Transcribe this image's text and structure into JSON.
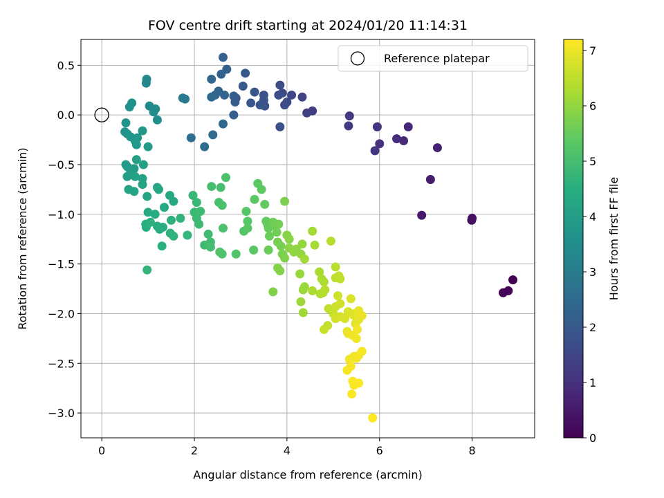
{
  "chart_data": {
    "type": "scatter",
    "title": "FOV centre drift starting at 2024/01/20 11:14:31",
    "xlabel": "Angular distance from reference (arcmin)",
    "ylabel": "Rotation from reference (arcmin)",
    "xlim": [
      -0.45,
      9.35
    ],
    "ylim": [
      -3.25,
      0.76
    ],
    "xticks": [
      0,
      2,
      4,
      6,
      8
    ],
    "xtick_labels": [
      "0",
      "2",
      "4",
      "6",
      "8"
    ],
    "yticks": [
      0.5,
      0.0,
      -0.5,
      -1.0,
      -1.5,
      -2.0,
      -2.5,
      -3.0
    ],
    "ytick_labels": [
      "0.5",
      "0.0",
      "−0.5",
      "−1.0",
      "−1.5",
      "−2.0",
      "−2.5",
      "−3.0"
    ],
    "grid": true,
    "legend": {
      "position": "top-right",
      "label": "Reference platepar"
    },
    "reference_point": {
      "x": 0,
      "y": 0
    },
    "colorbar": {
      "label": "Hours from first FF file",
      "colormap": "viridis",
      "range": [
        0,
        7.2
      ],
      "ticks": [
        0,
        1,
        2,
        3,
        4,
        5,
        6,
        7
      ],
      "tick_labels": [
        "0",
        "1",
        "2",
        "3",
        "4",
        "5",
        "6",
        "7"
      ]
    },
    "points": [
      [
        8.88,
        -1.66,
        0.02
      ],
      [
        8.78,
        -1.77,
        0.05
      ],
      [
        8.67,
        -1.79,
        0.08
      ],
      [
        8.0,
        -1.04,
        0.3
      ],
      [
        7.99,
        -1.06,
        0.35
      ],
      [
        6.91,
        -1.01,
        0.5
      ],
      [
        7.1,
        -0.65,
        0.6
      ],
      [
        7.25,
        -0.33,
        0.7
      ],
      [
        6.62,
        -0.12,
        0.8
      ],
      [
        6.52,
        -0.26,
        0.85
      ],
      [
        6.37,
        -0.24,
        0.9
      ],
      [
        6.0,
        -0.29,
        1.0
      ],
      [
        5.95,
        -0.12,
        1.05
      ],
      [
        5.9,
        -0.36,
        1.1
      ],
      [
        5.35,
        -0.01,
        1.2
      ],
      [
        5.33,
        -0.11,
        1.25
      ],
      [
        4.55,
        0.04,
        1.3
      ],
      [
        4.43,
        0.02,
        1.35
      ],
      [
        4.33,
        0.18,
        1.45
      ],
      [
        4.1,
        0.2,
        1.55
      ],
      [
        3.9,
        0.22,
        1.6
      ],
      [
        4.0,
        0.13,
        1.62
      ],
      [
        3.95,
        0.1,
        1.65
      ],
      [
        3.85,
        0.3,
        1.68
      ],
      [
        3.82,
        0.2,
        1.7
      ],
      [
        3.85,
        -0.12,
        1.75
      ],
      [
        3.5,
        0.2,
        1.8
      ],
      [
        3.5,
        0.15,
        1.82
      ],
      [
        3.52,
        0.09,
        1.85
      ],
      [
        3.42,
        0.1,
        1.88
      ],
      [
        3.3,
        0.23,
        1.9
      ],
      [
        3.22,
        0.12,
        1.95
      ],
      [
        3.1,
        0.42,
        2.0
      ],
      [
        3.05,
        0.29,
        2.02
      ],
      [
        2.9,
        0.17,
        2.05
      ],
      [
        2.85,
        0.19,
        2.1
      ],
      [
        2.88,
        0.13,
        2.12
      ],
      [
        2.85,
        0.0,
        2.15
      ],
      [
        2.7,
        0.46,
        2.2
      ],
      [
        2.62,
        0.58,
        2.25
      ],
      [
        2.58,
        0.41,
        2.28
      ],
      [
        2.65,
        0.2,
        2.3
      ],
      [
        2.52,
        0.24,
        2.32
      ],
      [
        2.45,
        0.2,
        2.35
      ],
      [
        2.37,
        0.36,
        2.4
      ],
      [
        2.37,
        0.18,
        2.42
      ],
      [
        2.62,
        -0.09,
        2.45
      ],
      [
        2.4,
        -0.2,
        2.5
      ],
      [
        2.22,
        -0.32,
        2.55
      ],
      [
        1.93,
        -0.23,
        2.6
      ],
      [
        1.8,
        0.16,
        2.9
      ],
      [
        1.75,
        0.17,
        2.92
      ],
      [
        0.97,
        0.36,
        3.3
      ],
      [
        0.96,
        0.32,
        3.35
      ],
      [
        1.03,
        0.09,
        3.4
      ],
      [
        1.16,
        0.06,
        3.45
      ],
      [
        1.12,
        0.03,
        3.5
      ],
      [
        1.2,
        -0.05,
        3.55
      ],
      [
        0.65,
        0.12,
        3.6
      ],
      [
        0.6,
        0.08,
        3.62
      ],
      [
        0.52,
        -0.08,
        3.65
      ],
      [
        0.5,
        -0.17,
        3.7
      ],
      [
        0.55,
        -0.19,
        3.72
      ],
      [
        0.62,
        -0.22,
        3.75
      ],
      [
        0.72,
        -0.26,
        3.78
      ],
      [
        0.77,
        -0.23,
        3.8
      ],
      [
        0.88,
        -0.16,
        3.82
      ],
      [
        0.75,
        -0.3,
        3.85
      ],
      [
        1.0,
        -0.32,
        3.87
      ],
      [
        0.52,
        -0.5,
        3.9
      ],
      [
        0.55,
        -0.52,
        3.92
      ],
      [
        0.7,
        -0.54,
        3.95
      ],
      [
        0.62,
        -0.58,
        3.97
      ],
      [
        0.55,
        -0.62,
        4.0
      ],
      [
        0.62,
        -0.6,
        4.02
      ],
      [
        0.75,
        -0.45,
        4.05
      ],
      [
        0.9,
        -0.5,
        4.07
      ],
      [
        0.72,
        -0.62,
        4.1
      ],
      [
        0.88,
        -0.64,
        4.12
      ],
      [
        0.7,
        -0.77,
        4.15
      ],
      [
        0.58,
        -0.75,
        4.17
      ],
      [
        0.88,
        -0.7,
        4.2
      ],
      [
        0.98,
        -0.82,
        4.22
      ],
      [
        1.2,
        -0.73,
        4.25
      ],
      [
        1.23,
        -0.75,
        4.28
      ],
      [
        1.35,
        -0.93,
        4.3
      ],
      [
        1.47,
        -0.81,
        4.32
      ],
      [
        1.55,
        -0.87,
        4.35
      ],
      [
        1.0,
        -0.98,
        4.38
      ],
      [
        1.15,
        -1.0,
        4.4
      ],
      [
        1.2,
        -1.12,
        4.42
      ],
      [
        1.25,
        -1.15,
        4.45
      ],
      [
        1.32,
        -1.13,
        4.47
      ],
      [
        0.95,
        -1.1,
        4.5
      ],
      [
        0.96,
        -1.13,
        4.52
      ],
      [
        1.05,
        -1.08,
        4.55
      ],
      [
        1.3,
        -1.32,
        4.57
      ],
      [
        1.5,
        -1.06,
        4.6
      ],
      [
        1.48,
        -1.19,
        4.62
      ],
      [
        1.55,
        -1.22,
        4.65
      ],
      [
        1.7,
        -1.04,
        4.67
      ],
      [
        0.98,
        -1.56,
        4.7
      ],
      [
        1.85,
        -1.21,
        4.72
      ],
      [
        1.97,
        -0.81,
        4.75
      ],
      [
        2.05,
        -0.88,
        4.77
      ],
      [
        2.0,
        -0.98,
        4.8
      ],
      [
        2.05,
        -1.04,
        4.82
      ],
      [
        2.13,
        -0.97,
        4.85
      ],
      [
        2.1,
        -1.1,
        4.87
      ],
      [
        2.22,
        -1.31,
        4.9
      ],
      [
        2.3,
        -1.2,
        4.92
      ],
      [
        2.35,
        -1.28,
        4.95
      ],
      [
        2.35,
        -1.33,
        4.98
      ],
      [
        2.37,
        -0.72,
        5.0
      ],
      [
        2.57,
        -0.73,
        5.02
      ],
      [
        2.53,
        -0.88,
        5.05
      ],
      [
        2.6,
        -0.91,
        5.07
      ],
      [
        2.68,
        -0.63,
        5.1
      ],
      [
        2.62,
        -1.14,
        5.12
      ],
      [
        2.55,
        -1.38,
        5.15
      ],
      [
        2.6,
        -1.4,
        5.17
      ],
      [
        2.9,
        -1.4,
        5.2
      ],
      [
        3.07,
        -1.17,
        5.22
      ],
      [
        3.12,
        -0.97,
        5.25
      ],
      [
        3.15,
        -1.07,
        5.27
      ],
      [
        3.15,
        -1.14,
        5.3
      ],
      [
        3.28,
        -1.36,
        5.32
      ],
      [
        3.3,
        -0.85,
        5.35
      ],
      [
        3.37,
        -0.69,
        5.37
      ],
      [
        3.45,
        -0.75,
        5.4
      ],
      [
        3.52,
        -0.9,
        5.42
      ],
      [
        3.55,
        -1.07,
        5.45
      ],
      [
        3.58,
        -1.1,
        5.47
      ],
      [
        3.6,
        -1.14,
        5.5
      ],
      [
        3.62,
        -1.22,
        5.52
      ],
      [
        3.6,
        -1.36,
        5.55
      ],
      [
        3.7,
        -1.08,
        5.57
      ],
      [
        3.75,
        -1.12,
        5.6
      ],
      [
        3.78,
        -1.18,
        5.62
      ],
      [
        3.82,
        -1.1,
        5.65
      ],
      [
        3.8,
        -1.28,
        5.67
      ],
      [
        3.87,
        -1.32,
        5.7
      ],
      [
        3.9,
        -1.4,
        5.72
      ],
      [
        3.95,
        -0.87,
        5.75
      ],
      [
        3.95,
        -1.44,
        5.77
      ],
      [
        3.7,
        -1.78,
        5.8
      ],
      [
        3.85,
        -1.57,
        5.82
      ],
      [
        3.8,
        -1.54,
        5.85
      ],
      [
        4.0,
        -1.21,
        5.87
      ],
      [
        4.05,
        -1.25,
        5.9
      ],
      [
        4.05,
        -1.34,
        5.92
      ],
      [
        4.15,
        -1.38,
        5.95
      ],
      [
        4.2,
        -1.35,
        5.97
      ],
      [
        4.3,
        -1.4,
        6.0
      ],
      [
        4.33,
        -1.3,
        6.02
      ],
      [
        4.28,
        -1.6,
        6.05
      ],
      [
        4.35,
        -1.76,
        6.07
      ],
      [
        4.38,
        -1.73,
        6.1
      ],
      [
        4.3,
        -1.88,
        6.12
      ],
      [
        4.35,
        -1.99,
        6.15
      ],
      [
        4.38,
        -1.45,
        6.17
      ],
      [
        4.55,
        -1.17,
        6.2
      ],
      [
        4.6,
        -1.31,
        6.22
      ],
      [
        4.55,
        -1.77,
        6.25
      ],
      [
        4.7,
        -1.58,
        6.27
      ],
      [
        4.75,
        -1.65,
        6.3
      ],
      [
        4.8,
        -1.68,
        6.32
      ],
      [
        4.72,
        -1.8,
        6.35
      ],
      [
        4.78,
        -1.79,
        6.37
      ],
      [
        4.82,
        -1.76,
        6.4
      ],
      [
        4.95,
        -1.27,
        6.42
      ],
      [
        5.05,
        -1.53,
        6.45
      ],
      [
        5.05,
        -1.64,
        6.47
      ],
      [
        5.12,
        -1.62,
        6.5
      ],
      [
        5.15,
        -1.65,
        6.52
      ],
      [
        4.9,
        -1.95,
        6.55
      ],
      [
        4.88,
        -2.12,
        6.57
      ],
      [
        4.8,
        -2.16,
        6.6
      ],
      [
        5.0,
        -2.0,
        6.62
      ],
      [
        5.05,
        -1.93,
        6.65
      ],
      [
        5.1,
        -1.82,
        6.67
      ],
      [
        5.15,
        -1.9,
        6.7
      ],
      [
        5.05,
        -2.05,
        6.72
      ],
      [
        5.15,
        -2.03,
        6.75
      ],
      [
        5.25,
        -2.05,
        6.77
      ],
      [
        5.32,
        -1.98,
        6.8
      ],
      [
        5.38,
        -1.85,
        6.82
      ],
      [
        5.42,
        -2.01,
        6.85
      ],
      [
        5.45,
        -2.0,
        6.87
      ],
      [
        5.48,
        -2.1,
        6.9
      ],
      [
        5.5,
        -2.08,
        6.92
      ],
      [
        5.55,
        -2.06,
        6.94
      ],
      [
        5.55,
        -1.97,
        6.96
      ],
      [
        5.62,
        -2.02,
        6.98
      ],
      [
        5.3,
        -2.18,
        7.0
      ],
      [
        5.32,
        -2.2,
        7.02
      ],
      [
        5.42,
        -2.22,
        7.04
      ],
      [
        5.5,
        -2.25,
        7.05
      ],
      [
        5.52,
        -2.16,
        7.06
      ],
      [
        5.35,
        -2.46,
        7.07
      ],
      [
        5.4,
        -2.45,
        7.08
      ],
      [
        5.45,
        -2.43,
        7.09
      ],
      [
        5.5,
        -2.45,
        7.1
      ],
      [
        5.55,
        -2.42,
        7.11
      ],
      [
        5.62,
        -2.38,
        7.12
      ],
      [
        5.3,
        -2.57,
        7.13
      ],
      [
        5.38,
        -2.53,
        7.14
      ],
      [
        5.42,
        -2.68,
        7.15
      ],
      [
        5.45,
        -2.72,
        7.16
      ],
      [
        5.55,
        -2.7,
        7.17
      ],
      [
        5.4,
        -2.81,
        7.18
      ],
      [
        5.85,
        -3.05,
        7.2
      ]
    ]
  }
}
